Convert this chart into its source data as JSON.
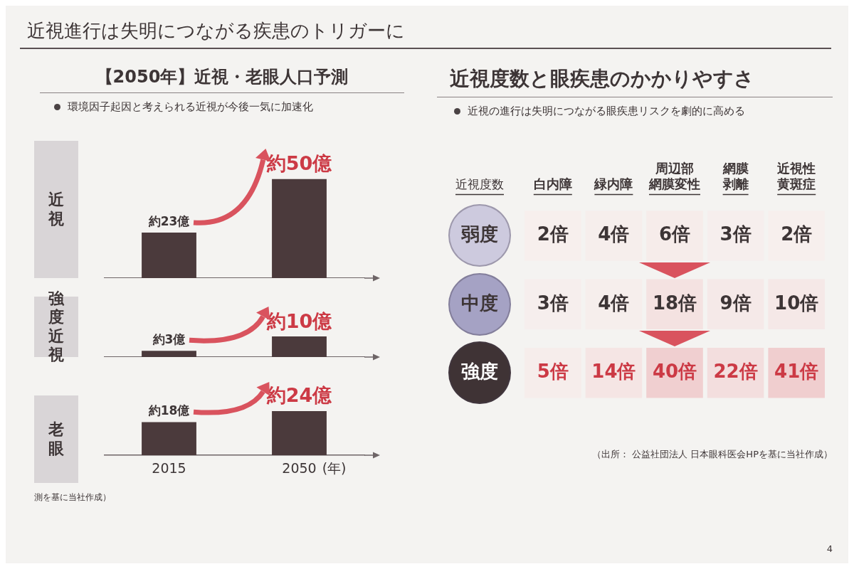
{
  "chart_data": [
    {
      "type": "bar",
      "title": "【2050年】近視・老眼人口予測",
      "subtitle": "環境因子起因と考えられる近視が今後一気に加速化",
      "ylabel": "近視",
      "categories": [
        "2015",
        "2050"
      ],
      "values": [
        23,
        50
      ],
      "value_labels": [
        "約23億",
        "約50億"
      ],
      "color": "#4b3a3c",
      "tick_labels": false,
      "annotations": [
        "近視進行は失明につながる疾患のトリガーに"
      ]
    },
    {
      "type": "bar",
      "ylabel": "強度近視",
      "categories": [
        "2015",
        "2050"
      ],
      "values": [
        3,
        10
      ],
      "value_labels": [
        "約3億",
        "約10億"
      ],
      "color": "#4b3a3c",
      "tick_labels": false
    },
    {
      "type": "bar",
      "ylabel": "老眼",
      "xlabel": "(年)",
      "categories": [
        "2015",
        "2050"
      ],
      "values": [
        18,
        24
      ],
      "value_labels": [
        "約18億",
        "約24億"
      ],
      "color": "#4b3a3c",
      "tick_labels": "x",
      "annotations": [
        "測を基に当社作成）"
      ]
    },
    {
      "type": "heatmap",
      "title": "近視度数と眼疾患のかかりやすさ",
      "subtitle": "近視の進行は失明につながる眼疾患リスクを劇的に高める",
      "ylabel": "近視度数",
      "categories": [
        "白内障",
        "緑内障",
        "周辺部網膜変性",
        "網膜剥離",
        "近視性黄斑症"
      ],
      "y_categories": [
        "弱度",
        "中度",
        "強度"
      ],
      "cells": [
        [
          2,
          4,
          6,
          3,
          2
        ],
        [
          3,
          4,
          18,
          9,
          10
        ],
        [
          5,
          14,
          40,
          22,
          41
        ]
      ],
      "cell_labels": [
        [
          "2倍",
          "4倍",
          "6倍",
          "3倍",
          "2倍"
        ],
        [
          "3倍",
          "4倍",
          "18倍",
          "9倍",
          "10倍"
        ],
        [
          "5倍",
          "14倍",
          "40倍",
          "22倍",
          "41倍"
        ]
      ],
      "annotations": [
        "（出所： 公益社団法人 日本眼科医会HPを基に当社作成）",
        "4"
      ]
    }
  ]
}
